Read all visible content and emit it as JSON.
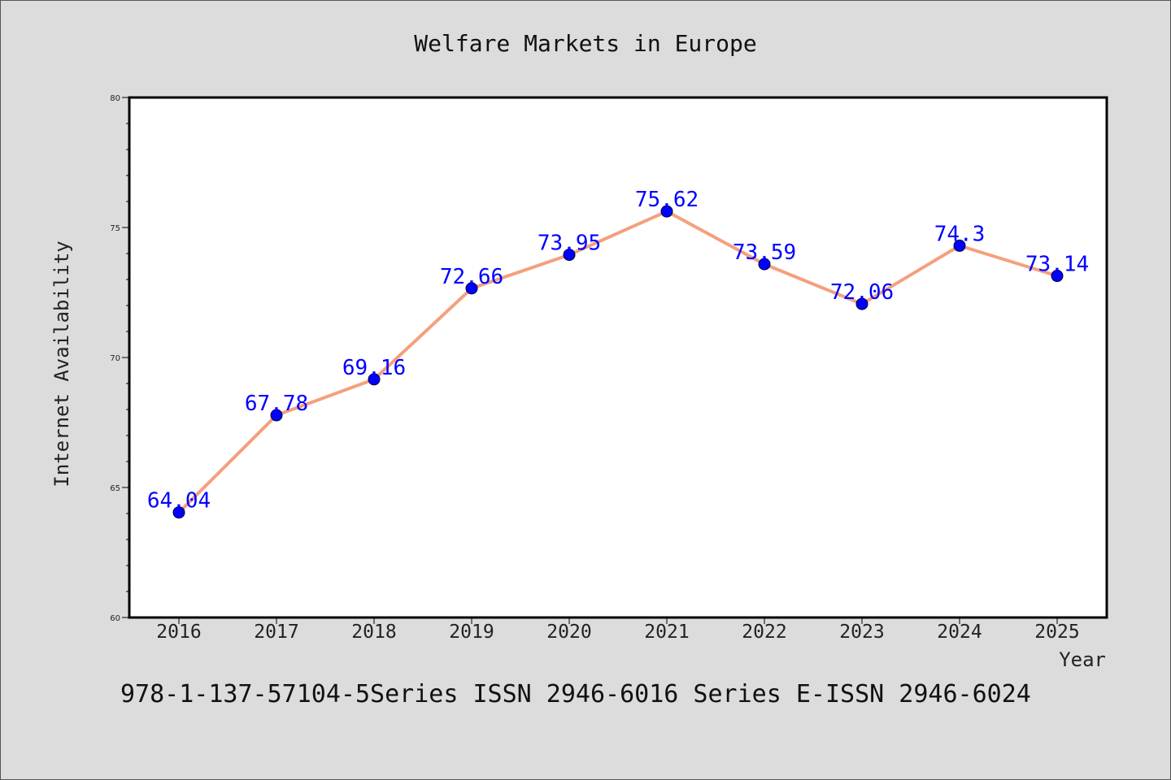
{
  "chart_data": {
    "type": "line",
    "title": "Welfare Markets in Europe",
    "xlabel": "Year",
    "ylabel": "Internet Availability",
    "categories": [
      "2016",
      "2017",
      "2018",
      "2019",
      "2020",
      "2021",
      "2022",
      "2023",
      "2024",
      "2025"
    ],
    "series": [
      {
        "values": [
          64.04,
          67.78,
          69.16,
          72.66,
          73.95,
          75.62,
          73.59,
          72.06,
          74.3,
          73.14
        ],
        "labels": [
          "64.04",
          "67.78",
          "69.16",
          "72.66",
          "73.95",
          "75.62",
          "73.59",
          "72.06",
          "74.3",
          "73.14"
        ],
        "line_color": "#f4a07e",
        "marker_color": "#0000ff"
      }
    ],
    "ylim": [
      60,
      80
    ],
    "yticks": [
      "60",
      "65",
      "70",
      "75",
      "80"
    ],
    "grid": false,
    "legend": "none"
  },
  "footer": {
    "text": "978-1-137-57104-5Series ISSN 2946-6016 Series E-ISSN 2946-6024"
  },
  "colors": {
    "background": "#dcdcdc",
    "plot_background": "#ffffff",
    "data_label": "#0000ff"
  }
}
